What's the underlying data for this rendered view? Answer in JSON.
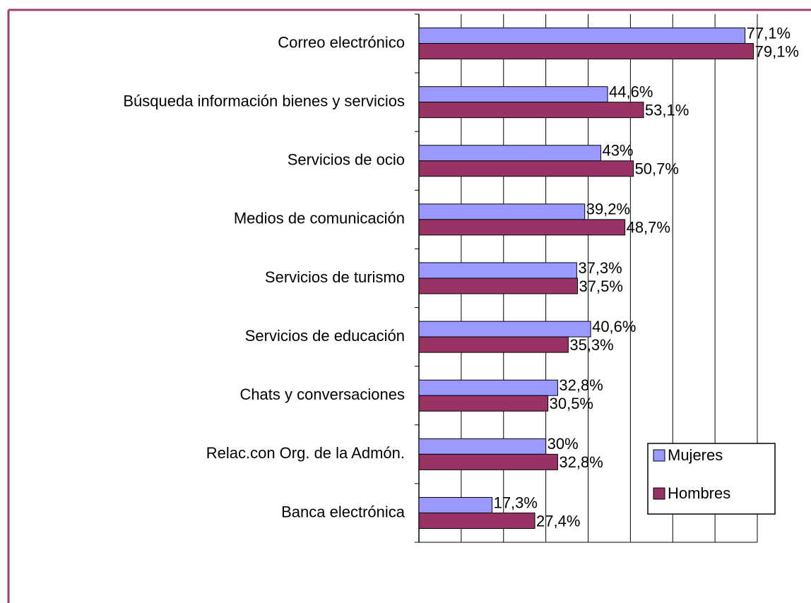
{
  "chart_data": {
    "type": "bar",
    "orientation": "horizontal",
    "categories": [
      "Correo electrónico",
      "Búsqueda información bienes y servicios",
      "Servicios  de ocio",
      "Medios de comunicación",
      "Servicios de turismo",
      "Servicios de educación",
      "Chats y conversaciones",
      "Relac.con Org. de la Admón.",
      "Banca electrónica"
    ],
    "series": [
      {
        "name": "Mujeres",
        "color": "#9999ff",
        "values": [
          77.1,
          44.6,
          43,
          39.2,
          37.3,
          40.6,
          32.8,
          30,
          17.3
        ],
        "value_labels": [
          "77,1%",
          "44,6%",
          "43%",
          "39,2%",
          "37,3%",
          "40,6%",
          "32,8%",
          "30%",
          "17,3%"
        ]
      },
      {
        "name": "Hombres",
        "color": "#993366",
        "values": [
          79.1,
          53.1,
          50.7,
          48.7,
          37.5,
          35.3,
          30.5,
          32.8,
          27.4
        ],
        "value_labels": [
          "79,1%",
          "53,1%",
          "50,7%",
          "48,7%",
          "37,5%",
          "35,3%",
          "30,5%",
          "32,8%",
          "27,4%"
        ]
      }
    ],
    "xlim": [
      0,
      80
    ],
    "xticks": [
      0,
      10,
      20,
      30,
      40,
      50,
      60,
      70,
      80
    ],
    "grid": true,
    "legend": "lower right"
  }
}
